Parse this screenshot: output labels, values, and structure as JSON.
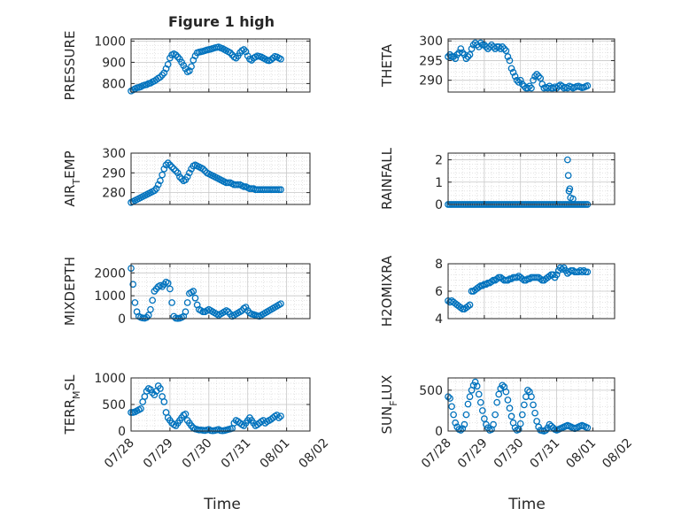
{
  "figure": {
    "title": "Figure 1 high",
    "xlabel": "Time"
  },
  "styles": {
    "marker_color": "#0072BD",
    "axis_color": "#262626",
    "grid_color": "#C8C8C8"
  },
  "chart_data": [
    {
      "type": "scatter",
      "ylabel": "PRESSURE",
      "ylabel_sub": null,
      "ylim": [
        760,
        1010
      ],
      "yticks": [
        800,
        900,
        1000
      ],
      "xlim": [
        0,
        4.6
      ],
      "grid": true,
      "x": [
        0.0,
        0.05,
        0.1,
        0.15,
        0.2,
        0.25,
        0.3,
        0.35,
        0.4,
        0.45,
        0.5,
        0.55,
        0.6,
        0.65,
        0.7,
        0.75,
        0.8,
        0.85,
        0.9,
        0.95,
        1.0,
        1.05,
        1.1,
        1.15,
        1.2,
        1.25,
        1.3,
        1.35,
        1.4,
        1.45,
        1.5,
        1.55,
        1.6,
        1.65,
        1.7,
        1.75,
        1.8,
        1.85,
        1.9,
        1.95,
        2.0,
        2.05,
        2.1,
        2.15,
        2.2,
        2.25,
        2.3,
        2.35,
        2.4,
        2.45,
        2.5,
        2.55,
        2.6,
        2.65,
        2.7,
        2.75,
        2.8,
        2.85,
        2.9,
        2.95,
        3.0,
        3.05,
        3.1,
        3.15,
        3.2,
        3.25,
        3.3,
        3.35,
        3.4,
        3.45,
        3.5,
        3.55,
        3.6,
        3.65,
        3.7,
        3.75,
        3.8,
        3.85
      ],
      "y": [
        765,
        770,
        775,
        780,
        782,
        785,
        790,
        793,
        795,
        800,
        802,
        808,
        812,
        818,
        825,
        830,
        840,
        850,
        870,
        890,
        920,
        935,
        940,
        935,
        925,
        915,
        900,
        885,
        870,
        855,
        860,
        880,
        910,
        930,
        945,
        948,
        950,
        952,
        955,
        958,
        960,
        962,
        965,
        968,
        970,
        972,
        968,
        965,
        960,
        955,
        950,
        945,
        935,
        925,
        920,
        930,
        945,
        955,
        960,
        950,
        930,
        915,
        910,
        920,
        925,
        930,
        928,
        925,
        920,
        915,
        910,
        908,
        912,
        920,
        928,
        925,
        920,
        915
      ]
    },
    {
      "type": "scatter",
      "ylabel": "THETA",
      "ylabel_sub": null,
      "ylim": [
        287,
        300.5
      ],
      "yticks": [
        290,
        295,
        300
      ],
      "xlim": [
        0,
        4.6
      ],
      "grid": true,
      "x": [
        0.0,
        0.05,
        0.1,
        0.15,
        0.2,
        0.25,
        0.3,
        0.35,
        0.4,
        0.45,
        0.5,
        0.55,
        0.6,
        0.65,
        0.7,
        0.75,
        0.8,
        0.85,
        0.9,
        0.95,
        1.0,
        1.05,
        1.1,
        1.15,
        1.2,
        1.25,
        1.3,
        1.35,
        1.4,
        1.45,
        1.5,
        1.55,
        1.6,
        1.65,
        1.7,
        1.75,
        1.8,
        1.85,
        1.9,
        1.95,
        2.0,
        2.05,
        2.1,
        2.15,
        2.2,
        2.25,
        2.3,
        2.35,
        2.4,
        2.45,
        2.5,
        2.55,
        2.6,
        2.65,
        2.7,
        2.75,
        2.8,
        2.85,
        2.9,
        2.95,
        3.0,
        3.05,
        3.1,
        3.15,
        3.2,
        3.25,
        3.3,
        3.35,
        3.4,
        3.45,
        3.5,
        3.55,
        3.6,
        3.65,
        3.7,
        3.75,
        3.8,
        3.85
      ],
      "y": [
        296,
        296.5,
        296,
        296,
        295.5,
        296.5,
        297,
        298,
        297,
        296.5,
        295.5,
        296,
        296.5,
        298,
        299,
        299.5,
        299,
        298.5,
        299.5,
        299,
        299,
        298.5,
        298,
        298.5,
        299,
        298.5,
        298,
        298.5,
        298.5,
        298,
        298.5,
        298,
        297.5,
        296,
        295,
        293,
        292,
        291,
        290,
        289.5,
        290,
        289,
        288.5,
        288,
        288,
        288.5,
        288,
        290,
        291,
        291.5,
        291,
        290.5,
        289,
        288,
        288.2,
        288,
        288.5,
        288,
        288,
        288.3,
        288,
        288.5,
        288.8,
        288.5,
        288,
        288.2,
        288,
        288.5,
        288.3,
        288,
        288.2,
        288.4,
        288.5,
        288.3,
        288.1,
        288.2,
        288.4,
        288.6
      ]
    },
    {
      "type": "scatter",
      "ylabel": "AIR",
      "ylabel_sub": "T",
      "ylabel_tail": "EMP",
      "ylim": [
        274,
        300
      ],
      "yticks": [
        280,
        290,
        300
      ],
      "xlim": [
        0,
        4.6
      ],
      "grid": true,
      "x": [
        0.0,
        0.05,
        0.1,
        0.15,
        0.2,
        0.25,
        0.3,
        0.35,
        0.4,
        0.45,
        0.5,
        0.55,
        0.6,
        0.65,
        0.7,
        0.75,
        0.8,
        0.85,
        0.9,
        0.95,
        1.0,
        1.05,
        1.1,
        1.15,
        1.2,
        1.25,
        1.3,
        1.35,
        1.4,
        1.45,
        1.5,
        1.55,
        1.6,
        1.65,
        1.7,
        1.75,
        1.8,
        1.85,
        1.9,
        1.95,
        2.0,
        2.05,
        2.1,
        2.15,
        2.2,
        2.25,
        2.3,
        2.35,
        2.4,
        2.45,
        2.5,
        2.55,
        2.6,
        2.65,
        2.7,
        2.75,
        2.8,
        2.85,
        2.9,
        2.95,
        3.0,
        3.05,
        3.1,
        3.15,
        3.2,
        3.25,
        3.3,
        3.35,
        3.4,
        3.45,
        3.5,
        3.55,
        3.6,
        3.65,
        3.7,
        3.75,
        3.8,
        3.85
      ],
      "y": [
        275,
        275.5,
        276,
        276.5,
        277,
        277.5,
        278,
        278.5,
        279,
        279.5,
        280,
        280.5,
        281,
        282,
        284,
        286,
        289,
        292,
        294,
        295,
        294,
        293,
        292,
        291,
        290,
        288,
        287,
        286,
        286.5,
        288,
        290,
        292,
        293.5,
        294,
        293.5,
        293,
        292.5,
        292,
        291,
        290,
        289.5,
        289,
        288.5,
        288,
        287.5,
        287,
        286.5,
        286,
        285.5,
        285,
        285,
        285,
        284.5,
        284,
        284,
        284,
        284,
        283.5,
        283,
        283,
        282.5,
        282,
        282,
        282,
        281.5,
        281.5,
        281.5,
        281.5,
        281.5,
        281.5,
        281.5,
        281.5,
        281.5,
        281.5,
        281.5,
        281.5,
        281.5,
        281.5
      ]
    },
    {
      "type": "scatter",
      "ylabel": "RAINFALL",
      "ylabel_sub": null,
      "ylim": [
        0,
        2.3
      ],
      "yticks": [
        0,
        1,
        2
      ],
      "xlim": [
        0,
        4.6
      ],
      "grid": true,
      "x": [
        0.0,
        0.05,
        0.1,
        0.15,
        0.2,
        0.25,
        0.3,
        0.35,
        0.4,
        0.45,
        0.5,
        0.55,
        0.6,
        0.65,
        0.7,
        0.75,
        0.8,
        0.85,
        0.9,
        0.95,
        1.0,
        1.05,
        1.1,
        1.15,
        1.2,
        1.25,
        1.3,
        1.35,
        1.4,
        1.45,
        1.5,
        1.55,
        1.6,
        1.65,
        1.7,
        1.75,
        1.8,
        1.85,
        1.9,
        1.95,
        2.0,
        2.05,
        2.1,
        2.15,
        2.2,
        2.25,
        2.3,
        2.35,
        2.4,
        2.45,
        2.5,
        2.55,
        2.6,
        2.65,
        2.7,
        2.75,
        2.8,
        2.85,
        2.9,
        2.95,
        3.0,
        3.05,
        3.1,
        3.15,
        3.2,
        3.25,
        3.3,
        3.35,
        3.4,
        3.45,
        3.5,
        3.55,
        3.6,
        3.65,
        3.7,
        3.75,
        3.8,
        3.85,
        3.3,
        3.32,
        3.34,
        3.36,
        3.38,
        3.45
      ],
      "y": [
        0,
        0,
        0,
        0,
        0,
        0,
        0,
        0,
        0,
        0,
        0,
        0,
        0,
        0,
        0,
        0,
        0,
        0,
        0,
        0,
        0,
        0,
        0,
        0,
        0,
        0,
        0,
        0,
        0,
        0,
        0,
        0,
        0,
        0,
        0,
        0,
        0,
        0,
        0,
        0,
        0,
        0,
        0,
        0,
        0,
        0,
        0,
        0,
        0,
        0,
        0,
        0,
        0,
        0,
        0,
        0,
        0,
        0,
        0,
        0,
        0,
        0,
        0,
        0,
        0,
        0,
        0,
        0,
        0,
        0,
        0,
        0,
        0,
        0,
        0,
        0,
        0,
        0,
        2.0,
        1.3,
        0.6,
        0.7,
        0.3,
        0.25
      ]
    },
    {
      "type": "scatter",
      "ylabel": "MIXDEPTH",
      "ylabel_sub": null,
      "ylim": [
        0,
        2400
      ],
      "yticks": [
        0,
        1000,
        2000
      ],
      "xlim": [
        0,
        4.6
      ],
      "grid": true,
      "x": [
        0.0,
        0.05,
        0.1,
        0.15,
        0.2,
        0.25,
        0.3,
        0.35,
        0.4,
        0.45,
        0.5,
        0.55,
        0.6,
        0.65,
        0.7,
        0.75,
        0.8,
        0.85,
        0.9,
        0.95,
        1.0,
        1.05,
        1.1,
        1.15,
        1.2,
        1.25,
        1.3,
        1.35,
        1.4,
        1.45,
        1.5,
        1.55,
        1.6,
        1.65,
        1.7,
        1.75,
        1.8,
        1.85,
        1.9,
        1.95,
        2.0,
        2.05,
        2.1,
        2.15,
        2.2,
        2.25,
        2.3,
        2.35,
        2.4,
        2.45,
        2.5,
        2.55,
        2.6,
        2.65,
        2.7,
        2.75,
        2.8,
        2.85,
        2.9,
        2.95,
        3.0,
        3.05,
        3.1,
        3.15,
        3.2,
        3.25,
        3.3,
        3.35,
        3.4,
        3.45,
        3.5,
        3.55,
        3.6,
        3.65,
        3.7,
        3.75,
        3.8,
        3.85
      ],
      "y": [
        2200,
        1500,
        700,
        300,
        100,
        50,
        30,
        20,
        50,
        150,
        400,
        800,
        1200,
        1300,
        1400,
        1450,
        1400,
        1500,
        1600,
        1550,
        1300,
        700,
        100,
        20,
        10,
        20,
        50,
        100,
        300,
        700,
        1100,
        1150,
        1200,
        900,
        600,
        400,
        350,
        300,
        300,
        350,
        400,
        350,
        300,
        250,
        200,
        150,
        200,
        250,
        300,
        350,
        300,
        200,
        100,
        150,
        200,
        250,
        300,
        350,
        450,
        500,
        350,
        250,
        200,
        180,
        150,
        120,
        100,
        150,
        200,
        250,
        300,
        350,
        400,
        450,
        500,
        550,
        600,
        650
      ]
    },
    {
      "type": "scatter",
      "ylabel": "H2OMIXRA",
      "ylabel_sub": null,
      "ylim": [
        4,
        8
      ],
      "yticks": [
        4,
        6,
        8
      ],
      "xlim": [
        0,
        4.6
      ],
      "grid": true,
      "x": [
        0.0,
        0.05,
        0.1,
        0.15,
        0.2,
        0.25,
        0.3,
        0.35,
        0.4,
        0.45,
        0.5,
        0.55,
        0.6,
        0.65,
        0.7,
        0.75,
        0.8,
        0.85,
        0.9,
        0.95,
        1.0,
        1.05,
        1.1,
        1.15,
        1.2,
        1.25,
        1.3,
        1.35,
        1.4,
        1.45,
        1.5,
        1.55,
        1.6,
        1.65,
        1.7,
        1.75,
        1.8,
        1.85,
        1.9,
        1.95,
        2.0,
        2.05,
        2.1,
        2.15,
        2.2,
        2.25,
        2.3,
        2.35,
        2.4,
        2.45,
        2.5,
        2.55,
        2.6,
        2.65,
        2.7,
        2.75,
        2.8,
        2.85,
        2.9,
        2.95,
        3.0,
        3.05,
        3.1,
        3.15,
        3.2,
        3.25,
        3.3,
        3.35,
        3.4,
        3.45,
        3.5,
        3.55,
        3.6,
        3.65,
        3.7,
        3.75,
        3.8,
        3.85
      ],
      "y": [
        5.3,
        5.2,
        5.3,
        5.2,
        5.1,
        5.0,
        4.9,
        4.8,
        4.7,
        4.7,
        4.8,
        4.9,
        5.0,
        6.0,
        6.0,
        6.1,
        6.2,
        6.3,
        6.4,
        6.4,
        6.5,
        6.5,
        6.6,
        6.6,
        6.7,
        6.8,
        6.8,
        6.9,
        7.0,
        7.0,
        6.9,
        6.8,
        6.8,
        6.8,
        6.9,
        6.9,
        7.0,
        7.0,
        7.0,
        7.1,
        7.0,
        6.9,
        6.8,
        6.8,
        6.9,
        6.9,
        7.0,
        7.0,
        7.0,
        7.0,
        7.0,
        6.9,
        6.8,
        6.8,
        6.9,
        7.0,
        7.1,
        7.2,
        7.2,
        7.0,
        7.2,
        7.5,
        7.7,
        7.6,
        7.7,
        7.5,
        7.3,
        7.4,
        7.5,
        7.5,
        7.4,
        7.4,
        7.4,
        7.5,
        7.4,
        7.5,
        7.4,
        7.4
      ]
    },
    {
      "type": "scatter",
      "ylabel": "TERR",
      "ylabel_sub": "M",
      "ylabel_tail": "SL",
      "ylim": [
        0,
        1000
      ],
      "yticks": [
        0,
        500,
        1000
      ],
      "xlim": [
        0,
        4.6
      ],
      "grid": true,
      "x": [
        0.0,
        0.05,
        0.1,
        0.15,
        0.2,
        0.25,
        0.3,
        0.35,
        0.4,
        0.45,
        0.5,
        0.55,
        0.6,
        0.65,
        0.7,
        0.75,
        0.8,
        0.85,
        0.9,
        0.95,
        1.0,
        1.05,
        1.1,
        1.15,
        1.2,
        1.25,
        1.3,
        1.35,
        1.4,
        1.45,
        1.5,
        1.55,
        1.6,
        1.65,
        1.7,
        1.75,
        1.8,
        1.85,
        1.9,
        1.95,
        2.0,
        2.05,
        2.1,
        2.15,
        2.2,
        2.25,
        2.3,
        2.35,
        2.4,
        2.45,
        2.5,
        2.55,
        2.6,
        2.65,
        2.7,
        2.75,
        2.8,
        2.85,
        2.9,
        2.95,
        3.0,
        3.05,
        3.1,
        3.15,
        3.2,
        3.25,
        3.3,
        3.35,
        3.4,
        3.45,
        3.5,
        3.55,
        3.6,
        3.65,
        3.7,
        3.75,
        3.8,
        3.85
      ],
      "y": [
        350,
        350,
        360,
        380,
        400,
        420,
        550,
        650,
        750,
        800,
        780,
        720,
        680,
        750,
        850,
        800,
        650,
        550,
        350,
        250,
        200,
        150,
        120,
        100,
        150,
        200,
        250,
        300,
        320,
        200,
        150,
        100,
        60,
        40,
        30,
        20,
        20,
        15,
        10,
        20,
        30,
        10,
        5,
        10,
        20,
        30,
        10,
        5,
        10,
        20,
        30,
        40,
        50,
        150,
        200,
        180,
        150,
        120,
        100,
        150,
        200,
        250,
        200,
        150,
        100,
        120,
        150,
        180,
        200,
        150,
        180,
        200,
        220,
        250,
        280,
        300,
        250,
        280
      ]
    },
    {
      "type": "scatter",
      "ylabel": "SUN",
      "ylabel_sub": "F",
      "ylabel_tail": "LUX",
      "ylim": [
        0,
        650
      ],
      "yticks": [
        0,
        500
      ],
      "xlim": [
        0,
        4.6
      ],
      "grid": true,
      "x": [
        0.0,
        0.05,
        0.1,
        0.15,
        0.2,
        0.25,
        0.3,
        0.35,
        0.4,
        0.45,
        0.5,
        0.55,
        0.6,
        0.65,
        0.7,
        0.75,
        0.8,
        0.85,
        0.9,
        0.95,
        1.0,
        1.05,
        1.1,
        1.15,
        1.2,
        1.25,
        1.3,
        1.35,
        1.4,
        1.45,
        1.5,
        1.55,
        1.6,
        1.65,
        1.7,
        1.75,
        1.8,
        1.85,
        1.9,
        1.95,
        2.0,
        2.05,
        2.1,
        2.15,
        2.2,
        2.25,
        2.3,
        2.35,
        2.4,
        2.45,
        2.5,
        2.55,
        2.6,
        2.65,
        2.7,
        2.75,
        2.8,
        2.85,
        2.9,
        2.95,
        3.0,
        3.05,
        3.1,
        3.15,
        3.2,
        3.25,
        3.3,
        3.35,
        3.4,
        3.45,
        3.5,
        3.55,
        3.6,
        3.65,
        3.7,
        3.75,
        3.8,
        3.85
      ],
      "y": [
        420,
        400,
        300,
        200,
        100,
        50,
        20,
        10,
        30,
        80,
        200,
        330,
        420,
        500,
        560,
        600,
        550,
        450,
        350,
        250,
        150,
        80,
        40,
        10,
        20,
        80,
        200,
        350,
        450,
        520,
        560,
        540,
        480,
        380,
        280,
        180,
        100,
        40,
        10,
        20,
        90,
        200,
        320,
        420,
        500,
        480,
        420,
        320,
        220,
        120,
        50,
        10,
        5,
        0,
        10,
        40,
        80,
        60,
        40,
        20,
        10,
        20,
        30,
        40,
        50,
        60,
        70,
        60,
        50,
        40,
        30,
        40,
        50,
        60,
        70,
        60,
        50,
        40
      ]
    }
  ]
}
